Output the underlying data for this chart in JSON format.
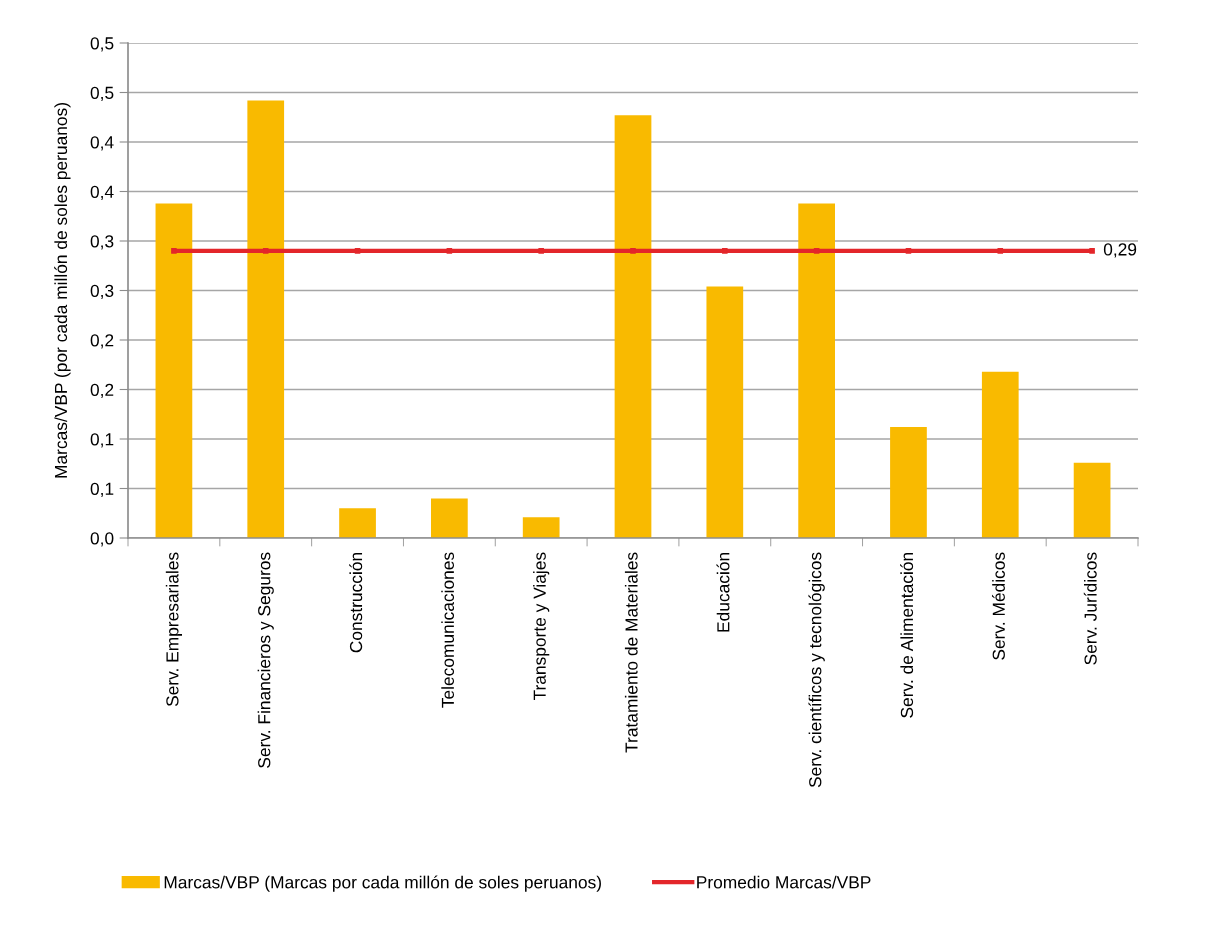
{
  "chart_data": {
    "type": "bar",
    "ylabel": "Marcas/VBP (por cada millón de soles peruanos)",
    "categories": [
      "Serv. Empresariales",
      "Serv. Financieros y Seguros",
      "Construcción",
      "Telecomunicaciones",
      "Transporte y Viajes",
      "Tratamiento de Materiales",
      "Educación",
      "Serv. científicos y tecnológicos",
      "Serv. de Alimentación",
      "Serv. Médicos",
      "Serv. Jurídicos"
    ],
    "series": [
      {
        "name": "Marcas/VBP (Marcas por cada millón de soles peruanos)",
        "color": "#f9ba00",
        "values": [
          0.338,
          0.442,
          0.03,
          0.04,
          0.021,
          0.427,
          0.254,
          0.338,
          0.112,
          0.168,
          0.076
        ]
      },
      {
        "name": "Promedio Marcas/VBP",
        "type": "line",
        "color": "#e3262a",
        "marker": "square",
        "line_style": "solid",
        "values": [
          0.29,
          0.29,
          0.29,
          0.29,
          0.29,
          0.29,
          0.29,
          0.29,
          0.29,
          0.29,
          0.29
        ],
        "value_labels": [
          null,
          null,
          null,
          null,
          null,
          null,
          null,
          null,
          null,
          null,
          "0,29"
        ]
      }
    ],
    "ylim": [
      0,
      0.5
    ],
    "yticks": [
      {
        "value": 0,
        "label": "0,0"
      },
      {
        "value": 0.05,
        "label": "0,1"
      },
      {
        "value": 0.1,
        "label": "0,1"
      },
      {
        "value": 0.15,
        "label": "0,2"
      },
      {
        "value": 0.2,
        "label": "0,2"
      },
      {
        "value": 0.25,
        "label": "0,3"
      },
      {
        "value": 0.3,
        "label": "0,3"
      },
      {
        "value": 0.35,
        "label": "0,4"
      },
      {
        "value": 0.4,
        "label": "0,4"
      },
      {
        "value": 0.45,
        "label": "0,5"
      },
      {
        "value": 0.5,
        "label": "0,5"
      }
    ],
    "grid": "y",
    "legend": "bottom"
  }
}
